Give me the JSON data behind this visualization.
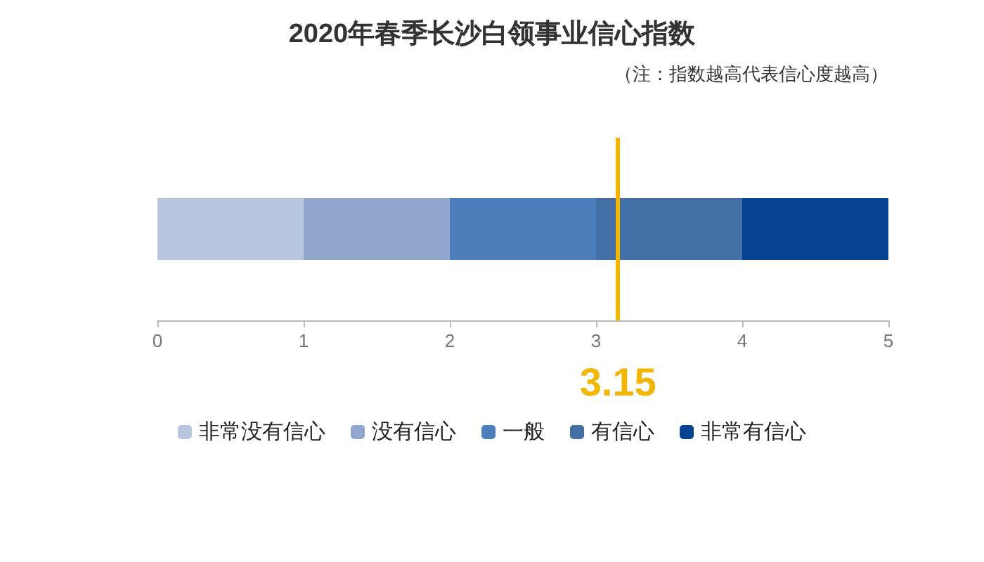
{
  "chart_data": {
    "type": "bar",
    "orientation": "horizontal",
    "stacked": true,
    "title": "2020年春季长沙白领事业信心指数",
    "annotations": [
      "（注：指数越高代表信心度越高）"
    ],
    "categories": [
      null
    ],
    "series": [
      {
        "name": "非常没有信心",
        "color": "#b8c6e0",
        "values": [
          1
        ]
      },
      {
        "name": "没有信心",
        "color": "#91a7d0",
        "values": [
          1
        ]
      },
      {
        "name": "一般",
        "color": "#4d7fbc",
        "values": [
          1
        ]
      },
      {
        "name": "有信心",
        "color": "#426fa6",
        "values": [
          1
        ]
      },
      {
        "name": "非常有信心",
        "color": "#054392",
        "values": [
          1
        ]
      }
    ],
    "xlim": [
      0,
      5
    ],
    "xticks": [
      0,
      1,
      2,
      3,
      4,
      5
    ],
    "ref_lines": [
      {
        "axis": "x",
        "value": 3.15,
        "label": "3.15",
        "color": "#f2b705"
      }
    ],
    "grid": false,
    "legend": "bottom"
  }
}
